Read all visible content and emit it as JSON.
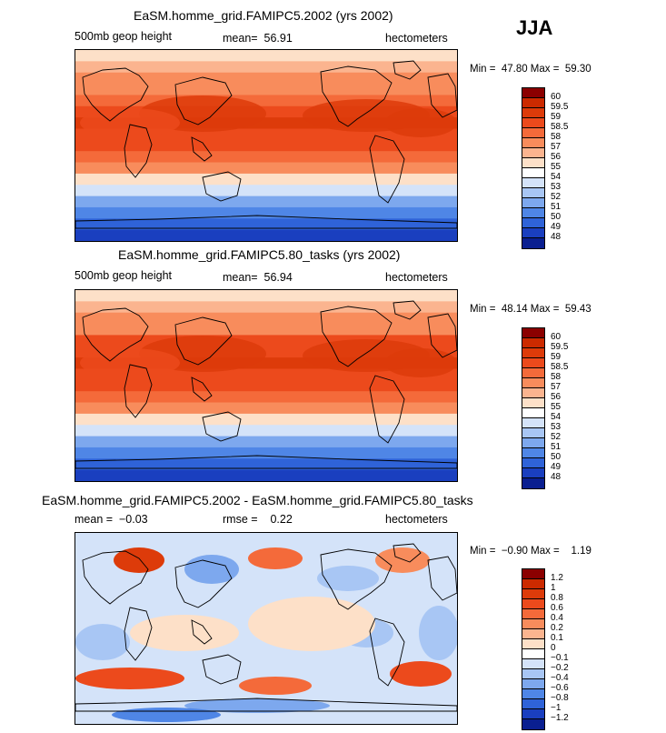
{
  "season": "JJA",
  "panels": [
    {
      "title": "EaSM.homme_grid.FAMIPC5.2002 (yrs 2002)",
      "left_label": "500mb geop height",
      "mid_label": "mean=  56.91",
      "right_label": "hectometers",
      "minmax": "Min =  47.80 Max =  59.30",
      "colorbar": {
        "labels": [
          "60",
          "59.5",
          "59",
          "58.5",
          "58",
          "57",
          "56",
          "55",
          "54",
          "53",
          "52",
          "51",
          "50",
          "49",
          "48"
        ],
        "colors": [
          "#8b0000",
          "#cc2a00",
          "#dd3b0a",
          "#ec4a1c",
          "#f46a3a",
          "#f88c5c",
          "#fbb48f",
          "#fde0c8",
          "#ffffff",
          "#d4e3f9",
          "#a8c6f4",
          "#7da8ee",
          "#4f86e6",
          "#2f63d8",
          "#1a3fbf",
          "#0a1f90"
        ]
      }
    },
    {
      "title": "EaSM.homme_grid.FAMIPC5.80_tasks (yrs 2002)",
      "left_label": "500mb geop height",
      "mid_label": "mean=  56.94",
      "right_label": "hectometers",
      "minmax": "Min =  48.14 Max =  59.43",
      "colorbar": {
        "labels": [
          "60",
          "59.5",
          "59",
          "58.5",
          "58",
          "57",
          "56",
          "55",
          "54",
          "53",
          "52",
          "51",
          "50",
          "49",
          "48"
        ],
        "colors": [
          "#8b0000",
          "#cc2a00",
          "#dd3b0a",
          "#ec4a1c",
          "#f46a3a",
          "#f88c5c",
          "#fbb48f",
          "#fde0c8",
          "#ffffff",
          "#d4e3f9",
          "#a8c6f4",
          "#7da8ee",
          "#4f86e6",
          "#2f63d8",
          "#1a3fbf",
          "#0a1f90"
        ]
      }
    },
    {
      "title": "EaSM.homme_grid.FAMIPC5.2002 - EaSM.homme_grid.FAMIPC5.80_tasks",
      "left_label": "mean =  −0.03",
      "mid_label": "rmse =    0.22",
      "right_label": "hectometers",
      "minmax": "Min =  −0.90 Max =    1.19",
      "colorbar": {
        "labels": [
          "1.2",
          "1",
          "0.8",
          "0.6",
          "0.4",
          "0.2",
          "0.1",
          "0",
          "−0.1",
          "−0.2",
          "−0.4",
          "−0.6",
          "−0.8",
          "−1",
          "−1.2"
        ],
        "colors": [
          "#8b0000",
          "#cc2a00",
          "#dd3b0a",
          "#ec4a1c",
          "#f46a3a",
          "#f88c5c",
          "#fbb48f",
          "#fde0c8",
          "#ffffff",
          "#d4e3f9",
          "#a8c6f4",
          "#7da8ee",
          "#4f86e6",
          "#2f63d8",
          "#1a3fbf",
          "#0a1f90"
        ]
      }
    }
  ],
  "chart_data": [
    {
      "type": "heatmap",
      "title": "EaSM.homme_grid.FAMIPC5.2002 (yrs 2002)",
      "variable": "500mb geop height",
      "units": "hectometers",
      "mean": 56.91,
      "min": 47.8,
      "max": 59.3,
      "levels": [
        48,
        49,
        50,
        51,
        52,
        53,
        54,
        55,
        56,
        57,
        58,
        58.5,
        59,
        59.5,
        60
      ],
      "y_band_values": [
        55.5,
        56.2,
        57.3,
        57.8,
        58.4,
        58.8,
        59.0,
        58.9,
        58.6,
        58.2,
        57.4,
        55.6,
        53.5,
        51.8,
        50.5,
        49.4,
        48.4
      ]
    },
    {
      "type": "heatmap",
      "title": "EaSM.homme_grid.FAMIPC5.80_tasks (yrs 2002)",
      "variable": "500mb geop height",
      "units": "hectometers",
      "mean": 56.94,
      "min": 48.14,
      "max": 59.43,
      "levels": [
        48,
        49,
        50,
        51,
        52,
        53,
        54,
        55,
        56,
        57,
        58,
        58.5,
        59,
        59.5,
        60
      ],
      "y_band_values": [
        55.6,
        56.3,
        57.4,
        57.9,
        58.5,
        58.9,
        59.0,
        58.9,
        58.7,
        58.2,
        57.5,
        55.7,
        53.6,
        51.9,
        50.6,
        49.5,
        48.6
      ]
    },
    {
      "type": "heatmap",
      "title": "EaSM.homme_grid.FAMIPC5.2002 - EaSM.homme_grid.FAMIPC5.80_tasks",
      "units": "hectometers",
      "mean": -0.03,
      "rmse": 0.22,
      "min": -0.9,
      "max": 1.19,
      "levels": [
        -1.2,
        -1,
        -0.8,
        -0.6,
        -0.4,
        -0.2,
        -0.1,
        0,
        0.1,
        0.2,
        0.4,
        0.6,
        0.8,
        1,
        1.2
      ]
    }
  ]
}
